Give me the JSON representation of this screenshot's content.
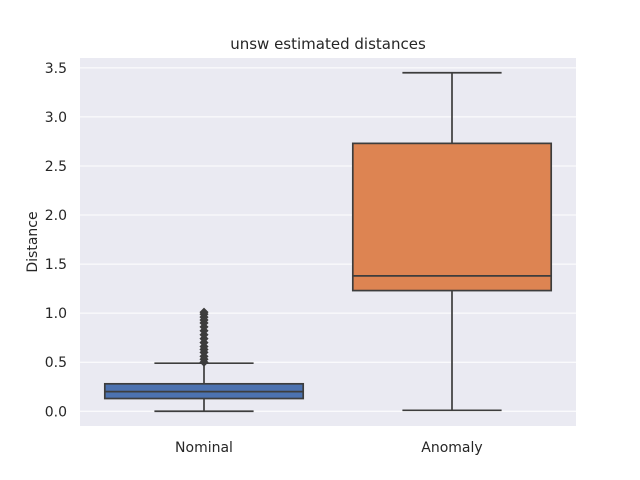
{
  "chart_data": {
    "type": "box",
    "title": "unsw estimated distances",
    "xlabel": "",
    "ylabel": "Distance",
    "ylim": [
      -0.15,
      3.6
    ],
    "yticks": [
      0.0,
      0.5,
      1.0,
      1.5,
      2.0,
      2.5,
      3.0,
      3.5
    ],
    "ytick_labels": [
      "0.0",
      "0.5",
      "1.0",
      "1.5",
      "2.0",
      "2.5",
      "3.0",
      "3.5"
    ],
    "grid": true,
    "categories": [
      "Nominal",
      "Anomaly"
    ],
    "series": [
      {
        "category": "Nominal",
        "whisker_low": 0.0,
        "q1": 0.13,
        "median": 0.2,
        "q3": 0.28,
        "whisker_high": 0.49,
        "outliers": [
          0.5,
          0.53,
          0.56,
          0.6,
          0.63,
          0.66,
          0.7,
          0.74,
          0.78,
          0.82,
          0.86,
          0.9,
          0.93,
          0.96,
          0.99,
          1.01
        ],
        "color": "#4c72b0"
      },
      {
        "category": "Anomaly",
        "whisker_low": 0.01,
        "q1": 1.23,
        "median": 1.38,
        "q3": 2.73,
        "whisker_high": 3.45,
        "outliers": [],
        "color": "#dd8452"
      }
    ],
    "plot_background": "#eaeaf2",
    "grid_color": "#ffffff",
    "line_color": "#3d3d3d"
  }
}
